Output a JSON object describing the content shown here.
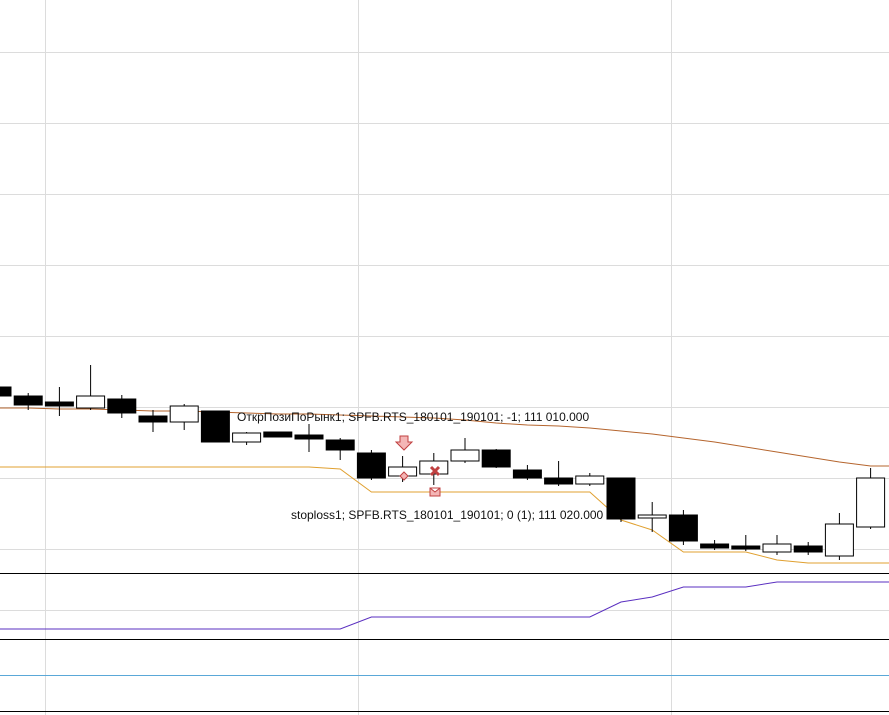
{
  "chart_data": {
    "type": "candlestick",
    "annotations": [
      "ОткрПозиПоРынк1; SPFB.RTS_180101_190101; -1; 111 010.000",
      "stoploss1; SPFB.RTS_180101_190101; 0 (1); 111 020.000"
    ],
    "ylim": [
      0,
      572
    ],
    "up_color": "#ffffff",
    "down_color": "#000000",
    "open": [
      185,
      176,
      170,
      164,
      173,
      156,
      150,
      161,
      130,
      140,
      137,
      132,
      119,
      96,
      98,
      111,
      122,
      102,
      94,
      88,
      94,
      54,
      57,
      28,
      26,
      20,
      26,
      16,
      45
    ],
    "high": [
      185,
      179,
      185,
      207,
      177,
      162,
      168,
      161,
      140,
      140,
      148,
      134,
      122,
      116,
      119,
      134,
      123,
      107,
      111,
      99,
      94,
      70,
      62,
      32,
      37,
      37,
      30,
      59,
      104
    ],
    "low": [
      176,
      162,
      156,
      162,
      154,
      140,
      142,
      130,
      127,
      135,
      120,
      112,
      92,
      90,
      87,
      109,
      104,
      92,
      86,
      86,
      50,
      40,
      27,
      22,
      21,
      17,
      17,
      12,
      43
    ],
    "close": [
      176,
      167,
      166,
      176,
      159,
      150,
      166,
      130,
      139,
      135,
      133,
      122,
      94,
      105,
      111,
      122,
      105,
      94,
      88,
      96,
      53,
      57,
      31,
      24,
      23,
      28,
      20,
      48,
      94
    ],
    "series": [
      {
        "color": "#b5652e",
        "values": [
          164,
          164,
          163,
          163,
          162,
          161,
          161,
          160,
          159,
          158,
          158,
          157,
          156,
          155,
          154,
          152,
          149,
          147,
          146,
          144,
          141,
          138,
          134,
          130,
          125,
          120,
          115,
          110,
          106
        ]
      },
      {
        "color": "#e0a030",
        "values": [
          105,
          105,
          105,
          105,
          105,
          105,
          105,
          105,
          105,
          105,
          105,
          103,
          80,
          80,
          80,
          80,
          80,
          80,
          80,
          80,
          52,
          42,
          20,
          20,
          20,
          12,
          9,
          9,
          9
        ]
      },
      {
        "color": "#5a2fc0",
        "axis": "y2",
        "values": [
          10,
          10,
          10,
          10,
          10,
          10,
          10,
          10,
          10,
          10,
          10,
          10,
          22,
          22,
          22,
          22,
          22,
          22,
          22,
          22,
          37,
          42,
          52,
          52,
          52,
          57,
          57,
          57,
          57
        ]
      }
    ],
    "y2lim": [
      0,
      66
    ]
  }
}
